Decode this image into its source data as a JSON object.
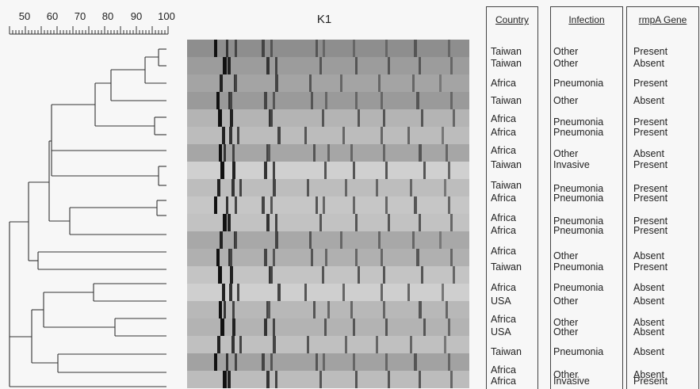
{
  "scale": {
    "ticks": [
      "50",
      "60",
      "70",
      "80",
      "90",
      "100"
    ]
  },
  "gel": {
    "title": "K1"
  },
  "table": {
    "headers": {
      "country": "Country",
      "infection": "Infection",
      "rmpa": "rmpA Gene"
    },
    "rows": [
      {
        "country": "Taiwan",
        "infection": "Other",
        "rmpa": "Present"
      },
      {
        "country": "Taiwan",
        "infection": "Other",
        "rmpa": "Absent"
      },
      {
        "country": "Africa",
        "infection": "Pneumonia",
        "rmpa": "Present"
      },
      {
        "country": "Taiwan",
        "infection": "Other",
        "rmpa": "Absent"
      },
      {
        "country": "Africa",
        "infection": "Pneumonia",
        "rmpa": "Present"
      },
      {
        "country": "Africa",
        "infection": "Pneumonia",
        "rmpa": "Present"
      },
      {
        "country": "Africa",
        "infection": "Other",
        "rmpa": "Absent"
      },
      {
        "country": "Taiwan",
        "infection": "Invasive",
        "rmpa": "Present"
      },
      {
        "country": "Taiwan",
        "infection": "Pneumonia",
        "rmpa": "Present"
      },
      {
        "country": "Africa",
        "infection": "Pneumonia",
        "rmpa": "Present"
      },
      {
        "country": "Africa",
        "infection": "Pneumonia",
        "rmpa": "Present"
      },
      {
        "country": "Africa",
        "infection": "Pneumonia",
        "rmpa": "Present"
      },
      {
        "country": "Africa",
        "infection": "Other",
        "rmpa": "Absent"
      },
      {
        "country": "Taiwan",
        "infection": "Pneumonia",
        "rmpa": "Present"
      },
      {
        "country": "Africa",
        "infection": "Pneumonia",
        "rmpa": "Absent"
      },
      {
        "country": "USA",
        "infection": "Other",
        "rmpa": "Absent"
      },
      {
        "country": "Africa",
        "infection": "Other",
        "rmpa": "Absent"
      },
      {
        "country": "USA",
        "infection": "Other",
        "rmpa": "Absent"
      },
      {
        "country": "Taiwan",
        "infection": "Pneumonia",
        "rmpa": "Absent"
      },
      {
        "country": "Africa",
        "infection": "Other",
        "rmpa": "Absent"
      },
      {
        "country": "Africa",
        "infection": "Invasive",
        "rmpa": "Present"
      }
    ]
  }
}
